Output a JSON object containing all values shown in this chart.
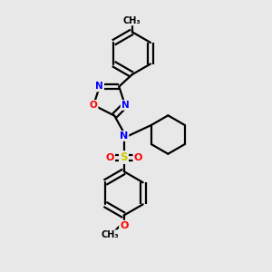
{
  "background_color": "#e8e8e8",
  "atom_colors": {
    "N": "#0000ff",
    "O": "#ff0000",
    "S": "#cccc00"
  },
  "bond_color": "#000000",
  "line_width": 1.6,
  "figsize": [
    3.0,
    3.0
  ],
  "dpi": 100,
  "xlim": [
    0,
    10
  ],
  "ylim": [
    0,
    10
  ]
}
